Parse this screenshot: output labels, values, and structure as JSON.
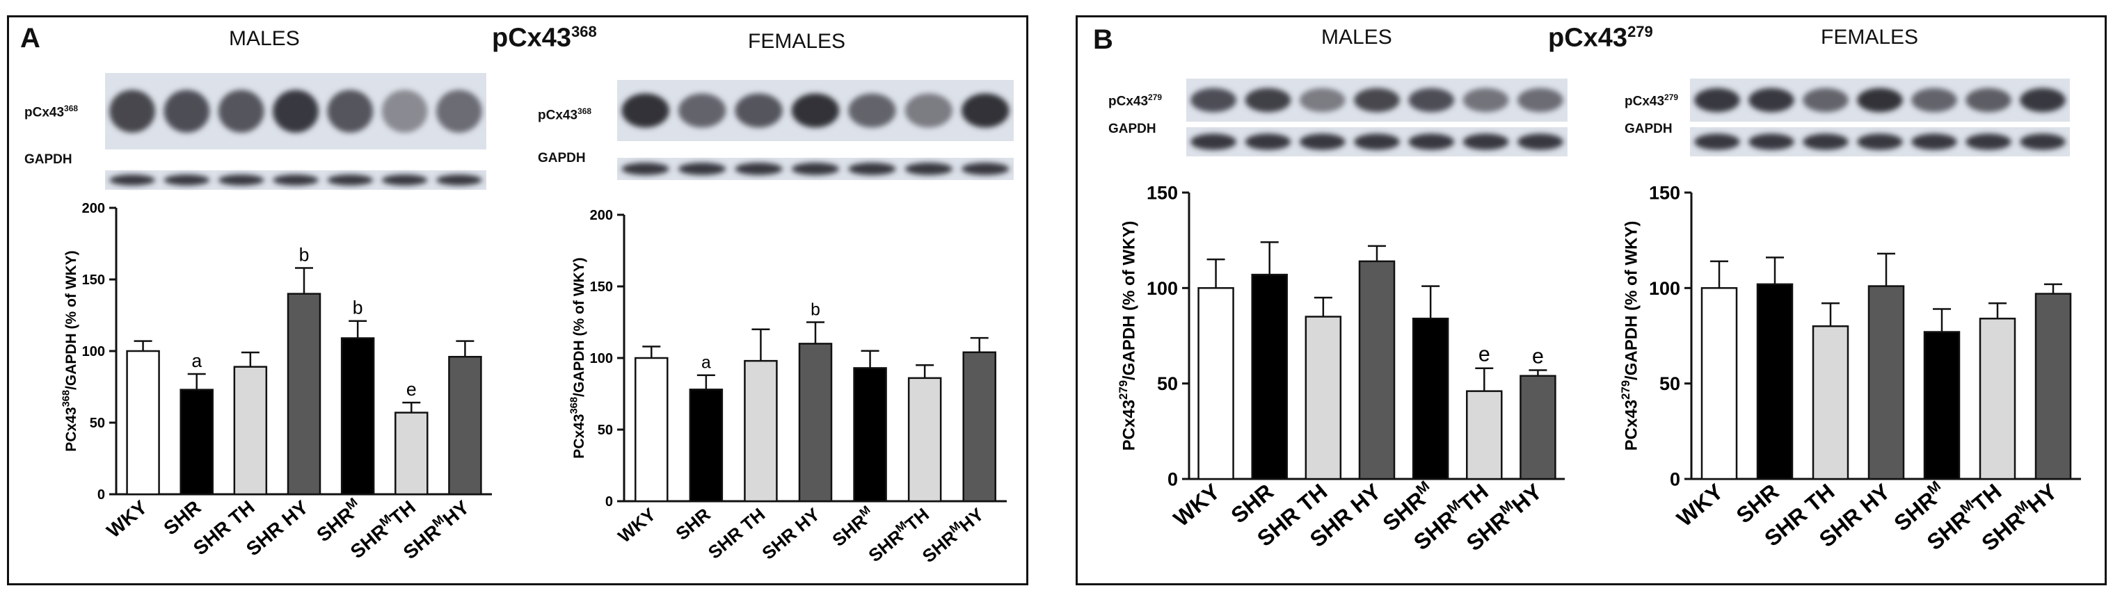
{
  "panels": [
    {
      "letter": "A",
      "title_base": "pCx43",
      "title_sup": "368",
      "males_label": "MALES",
      "females_label": "FEMALES"
    },
    {
      "letter": "B",
      "title_base": "pCx43",
      "title_sup": "279",
      "males_label": "MALES",
      "females_label": "FEMALES"
    }
  ],
  "blots": [
    {
      "protein_base": "pCx43",
      "protein_sup": "368",
      "control": "GAPDH"
    },
    {
      "protein_base": "pCx43",
      "protein_sup": "368",
      "control": "GAPDH"
    },
    {
      "protein_base": "pCx43",
      "protein_sup": "279",
      "control": "GAPDH"
    },
    {
      "protein_base": "pCx43",
      "protein_sup": "279",
      "control": "GAPDH"
    }
  ],
  "colors": {
    "WKY": "#ffffff",
    "SHR": "#000000",
    "SHR TH": "#d9d9d9",
    "SHR HY": "#595959"
  },
  "chart_data": [
    {
      "type": "bar",
      "panel": "A",
      "sex": "MALES",
      "categories": [
        {
          "base": "WKY"
        },
        {
          "base": "SHR"
        },
        {
          "base": "SHR TH"
        },
        {
          "base": "SHR HY"
        },
        {
          "base": "SHR",
          "sup": "M"
        },
        {
          "base": "SHR",
          "sup": "M",
          "tail": "TH"
        },
        {
          "base": "SHR",
          "sup": "M",
          "tail": "HY"
        }
      ],
      "values": [
        100,
        73,
        89,
        140,
        109,
        57,
        96
      ],
      "errors": [
        7,
        11,
        10,
        18,
        12,
        7,
        11
      ],
      "annotations": [
        "",
        "a",
        "",
        "b",
        "b",
        "e",
        ""
      ],
      "fills": [
        "#ffffff",
        "#000000",
        "#d9d9d9",
        "#595959",
        "#000000",
        "#d9d9d9",
        "#595959"
      ],
      "ylabel": {
        "pre": "PCx43",
        "sup": "368",
        "post": "/GAPDH (% of WKY)"
      },
      "ylim": [
        0,
        200
      ],
      "yticks": [
        0,
        50,
        100,
        150,
        200
      ]
    },
    {
      "type": "bar",
      "panel": "A",
      "sex": "FEMALES",
      "categories": [
        {
          "base": "WKY"
        },
        {
          "base": "SHR"
        },
        {
          "base": "SHR TH"
        },
        {
          "base": "SHR HY"
        },
        {
          "base": "SHR",
          "sup": "M"
        },
        {
          "base": "SHR",
          "sup": "M",
          "tail": "TH"
        },
        {
          "base": "SHR",
          "sup": "M",
          "tail": "HY"
        }
      ],
      "values": [
        100,
        78,
        98,
        110,
        93,
        86,
        104
      ],
      "errors": [
        8,
        10,
        22,
        15,
        12,
        9,
        10
      ],
      "annotations": [
        "",
        "a",
        "",
        "b",
        "",
        "",
        ""
      ],
      "fills": [
        "#ffffff",
        "#000000",
        "#d9d9d9",
        "#595959",
        "#000000",
        "#d9d9d9",
        "#595959"
      ],
      "ylabel": {
        "pre": "PCx43",
        "sup": "368",
        "post": "/GAPDH (% of WKY)"
      },
      "ylim": [
        0,
        200
      ],
      "yticks": [
        0,
        50,
        100,
        150,
        200
      ]
    },
    {
      "type": "bar",
      "panel": "B",
      "sex": "MALES",
      "categories": [
        {
          "base": "WKY"
        },
        {
          "base": "SHR"
        },
        {
          "base": "SHR TH"
        },
        {
          "base": "SHR HY"
        },
        {
          "base": "SHR",
          "sup": "M"
        },
        {
          "base": "SHR",
          "sup": "M",
          "tail": "TH"
        },
        {
          "base": "SHR",
          "sup": "M",
          "tail": "HY"
        }
      ],
      "values": [
        100,
        107,
        85,
        114,
        84,
        46,
        54
      ],
      "errors": [
        15,
        17,
        10,
        8,
        17,
        12,
        3
      ],
      "annotations": [
        "",
        "",
        "",
        "",
        "",
        "e",
        "e"
      ],
      "fills": [
        "#ffffff",
        "#000000",
        "#d9d9d9",
        "#595959",
        "#000000",
        "#d9d9d9",
        "#595959"
      ],
      "ylabel": {
        "pre": "PCx43",
        "sup": "279",
        "post": "/GAPDH (% of WKY)"
      },
      "ylim": [
        0,
        150
      ],
      "yticks": [
        0,
        50,
        100,
        150
      ]
    },
    {
      "type": "bar",
      "panel": "B",
      "sex": "FEMALES",
      "categories": [
        {
          "base": "WKY"
        },
        {
          "base": "SHR"
        },
        {
          "base": "SHR TH"
        },
        {
          "base": "SHR HY"
        },
        {
          "base": "SHR",
          "sup": "M"
        },
        {
          "base": "SHR",
          "sup": "M",
          "tail": "TH"
        },
        {
          "base": "SHR",
          "sup": "M",
          "tail": "HY"
        }
      ],
      "values": [
        100,
        102,
        80,
        101,
        77,
        84,
        97
      ],
      "errors": [
        14,
        14,
        12,
        17,
        12,
        8,
        5
      ],
      "annotations": [
        "",
        "",
        "",
        "",
        "",
        "",
        ""
      ],
      "fills": [
        "#ffffff",
        "#000000",
        "#d9d9d9",
        "#595959",
        "#000000",
        "#d9d9d9",
        "#595959"
      ],
      "ylabel": {
        "pre": "PCx43",
        "sup": "279",
        "post": "/GAPDH (% of WKY)"
      },
      "ylim": [
        0,
        150
      ],
      "yticks": [
        0,
        50,
        100,
        150
      ]
    }
  ]
}
